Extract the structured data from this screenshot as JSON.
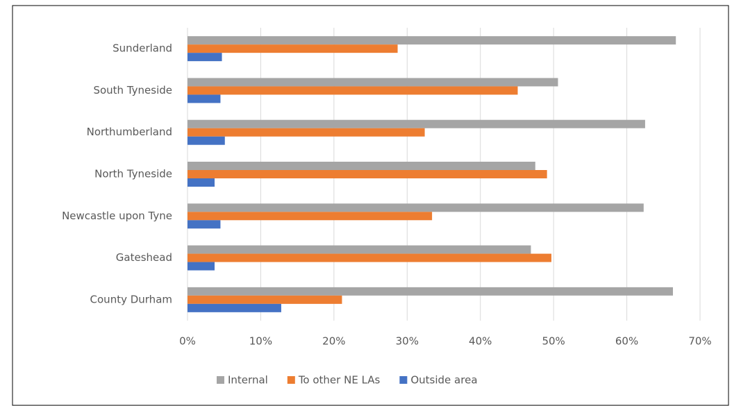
{
  "chart_data": {
    "type": "hbar",
    "categories": [
      "County Durham",
      "Gateshead",
      "Newcastle upon Tyne",
      "North Tyneside",
      "Northumberland",
      "South Tyneside",
      "Sunderland"
    ],
    "series": [
      {
        "name": "Internal",
        "color": "#a5a5a5",
        "values": [
          66.3,
          46.9,
          62.3,
          47.5,
          62.5,
          50.6,
          66.7
        ]
      },
      {
        "name": "To other NE LAs",
        "color": "#ed7d31",
        "values": [
          21.1,
          49.7,
          33.4,
          49.1,
          32.4,
          45.1,
          28.7
        ]
      },
      {
        "name": "Outside area",
        "color": "#4472c4",
        "values": [
          12.8,
          3.7,
          4.5,
          3.7,
          5.1,
          4.5,
          4.7
        ]
      }
    ],
    "xlim": [
      0,
      70
    ],
    "xticks": [
      {
        "value": 0,
        "label": "0%"
      },
      {
        "value": 10,
        "label": "10%"
      },
      {
        "value": 20,
        "label": "20%"
      },
      {
        "value": 30,
        "label": "30%"
      },
      {
        "value": 40,
        "label": "40%"
      },
      {
        "value": 50,
        "label": "50%"
      },
      {
        "value": 60,
        "label": "60%"
      },
      {
        "value": 70,
        "label": "70%"
      }
    ],
    "grid": true,
    "legend": "bottom"
  }
}
